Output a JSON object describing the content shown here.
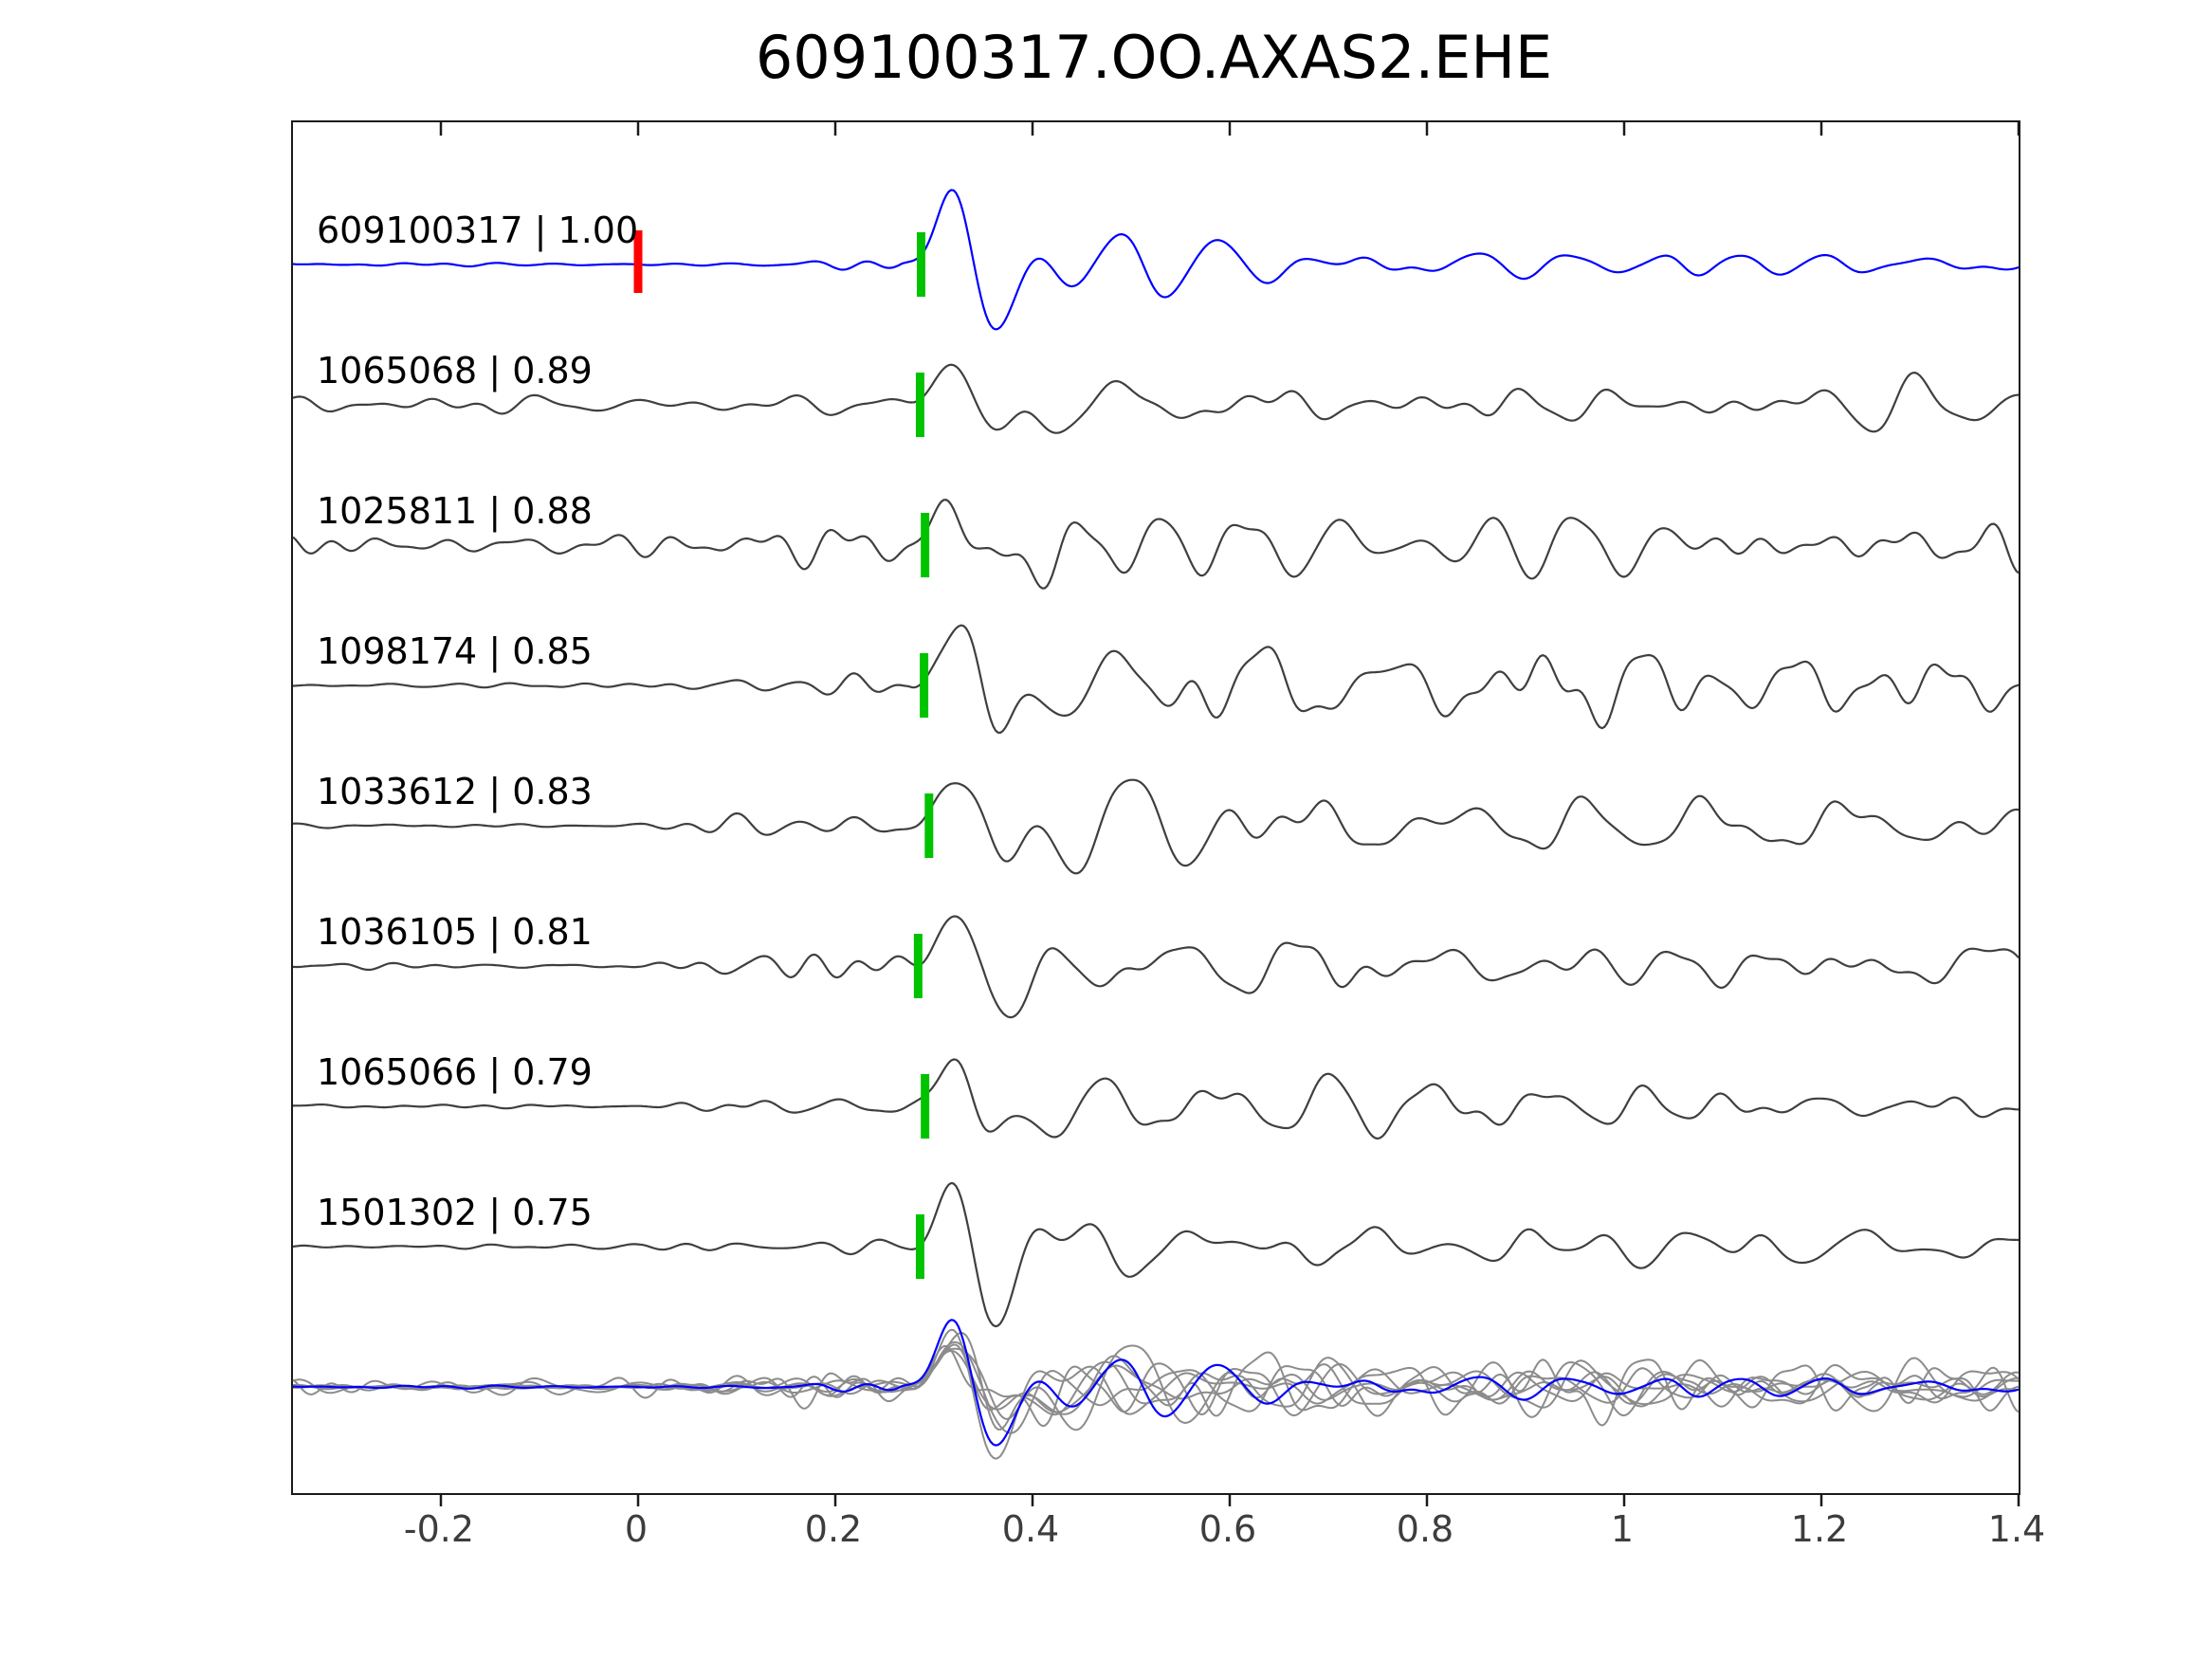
{
  "title": "609100317.OO.AXAS2.EHE",
  "axis": {
    "xlim": [
      -0.35,
      1.4
    ],
    "xtick_values": [
      -0.2,
      0,
      0.2,
      0.4,
      0.6,
      0.8,
      1,
      1.2,
      1.4
    ],
    "xtick_labels": [
      "-0.2",
      "0",
      "0.2",
      "0.4",
      "0.6",
      "0.8",
      "1",
      "1.2",
      "1.4"
    ]
  },
  "colors": {
    "template_trace": "#0000ff",
    "matched_trace": "#3f3f3f",
    "overlay_trace": "#8c8c8c",
    "pick_marker": "#00c300",
    "origin_marker": "#ff0000",
    "axis_line": "#1a1a1a",
    "tick_label": "#3d3d3d",
    "title": "#000000"
  },
  "chart_data": {
    "type": "line",
    "subtype": "seismic-waveform-stack",
    "title": "609100317.OO.AXAS2.EHE",
    "xlabel": "",
    "ylabel": "",
    "xlim": [
      -0.35,
      1.4
    ],
    "xticks": [
      -0.2,
      0,
      0.2,
      0.4,
      0.6,
      0.8,
      1,
      1.2,
      1.4
    ],
    "grid": false,
    "legend": false,
    "traces": [
      {
        "event_id": "609100317",
        "correlation": "1.00",
        "label": "609100317 | 1.00",
        "role": "template",
        "pick_time": 0.287,
        "origin_marker_time": 0.0,
        "render": {
          "seed": 11,
          "noise_pre": 2,
          "noise_onset": 0.04,
          "noise_rise": 0.2,
          "noise_mid": 6,
          "t0": 0.328,
          "event_width": 0.034,
          "event_amp": 95,
          "coda_amp": 55,
          "coda_decay": 0.4,
          "coda_floor": 0.45
        }
      },
      {
        "event_id": "1065068",
        "correlation": "0.89",
        "label": "1065068 | 0.89",
        "role": "match",
        "pick_time": 0.286,
        "render": {
          "seed": 22,
          "noise_pre": 14,
          "noise_onset": -0.35,
          "noise_rise": 0.01,
          "noise_mid": 14,
          "t0": 0.332,
          "event_width": 0.036,
          "event_amp": 68,
          "coda_amp": 48,
          "coda_decay": 0.6,
          "coda_floor": 0.5
        }
      },
      {
        "event_id": "1025811",
        "correlation": "0.88",
        "label": "1025811 | 0.88",
        "role": "match",
        "pick_time": 0.291,
        "render": {
          "seed": 33,
          "noise_pre": 14,
          "noise_onset": -0.35,
          "noise_rise": 0.01,
          "noise_mid": 15,
          "t0": 0.336,
          "event_width": 0.036,
          "event_amp": 70,
          "coda_amp": 50,
          "coda_decay": 0.6,
          "coda_floor": 0.5
        }
      },
      {
        "event_id": "1098174",
        "correlation": "0.85",
        "label": "1098174 | 0.85",
        "role": "match",
        "pick_time": 0.29,
        "render": {
          "seed": 44,
          "noise_pre": 3.5,
          "noise_onset": 0.0,
          "noise_rise": 0.12,
          "noise_mid": 17,
          "t0": 0.334,
          "event_width": 0.037,
          "event_amp": 70,
          "coda_amp": 52,
          "coda_decay": 0.7,
          "coda_floor": 0.5
        }
      },
      {
        "event_id": "1033612",
        "correlation": "0.83",
        "label": "1033612 | 0.83",
        "role": "match",
        "pick_time": 0.295,
        "render": {
          "seed": 55,
          "noise_pre": 3.5,
          "noise_onset": 0.0,
          "noise_rise": 0.12,
          "noise_mid": 16,
          "t0": 0.338,
          "event_width": 0.036,
          "event_amp": 68,
          "coda_amp": 50,
          "coda_decay": 0.7,
          "coda_floor": 0.5
        }
      },
      {
        "event_id": "1036105",
        "correlation": "0.81",
        "label": "1036105 | 0.81",
        "role": "match",
        "pick_time": 0.284,
        "render": {
          "seed": 66,
          "noise_pre": 4,
          "noise_onset": 0.0,
          "noise_rise": 0.12,
          "noise_mid": 20,
          "t0": 0.33,
          "event_width": 0.038,
          "event_amp": 75,
          "coda_amp": 58,
          "coda_decay": 0.8,
          "coda_floor": 0.5
        }
      },
      {
        "event_id": "1065066",
        "correlation": "0.79",
        "label": "1065066 | 0.79",
        "role": "match",
        "pick_time": 0.291,
        "render": {
          "seed": 77,
          "noise_pre": 4,
          "noise_onset": 0.0,
          "noise_rise": 0.12,
          "noise_mid": 15,
          "t0": 0.336,
          "event_width": 0.036,
          "event_amp": 66,
          "coda_amp": 46,
          "coda_decay": 0.7,
          "coda_floor": 0.5
        }
      },
      {
        "event_id": "1501302",
        "correlation": "0.75",
        "label": "1501302 | 0.75",
        "role": "match",
        "pick_time": 0.286,
        "render": {
          "seed": 88,
          "noise_pre": 3,
          "noise_onset": 0.0,
          "noise_rise": 0.12,
          "noise_mid": 10,
          "t0": 0.332,
          "event_width": 0.036,
          "event_amp": 60,
          "coda_amp": 38,
          "coda_decay": 0.7,
          "coda_floor": 0.45
        }
      }
    ],
    "overlay_row": {
      "description": "all matched traces superimposed with template trace",
      "scale": 0.9
    }
  }
}
